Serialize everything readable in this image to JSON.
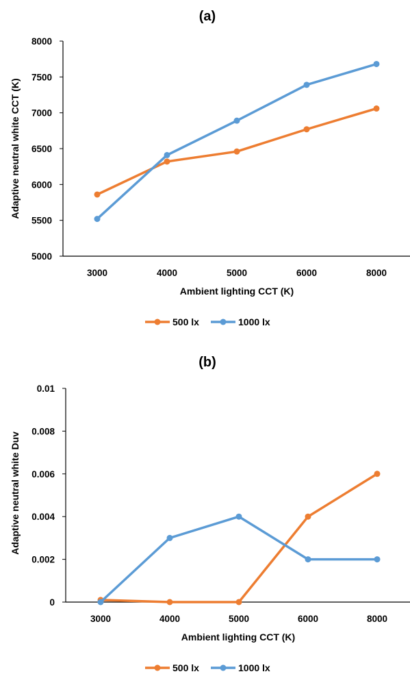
{
  "charts": [
    {
      "type": "line",
      "title": "(a)",
      "xlabel": "Ambient lighting CCT (K)",
      "ylabel": "Adaptive neutral white CCT (K)",
      "categories": [
        "3000",
        "4000",
        "5000",
        "6000",
        "8000"
      ],
      "ylim": [
        5000,
        8000
      ],
      "yticks": [
        "5000",
        "5500",
        "6000",
        "6500",
        "7000",
        "7500",
        "8000"
      ],
      "grid": false,
      "legend_position": "bottom",
      "series": [
        {
          "name": "500 lx",
          "color": "#ED7D31",
          "values": [
            5860,
            6320,
            6460,
            6770,
            7060
          ]
        },
        {
          "name": "1000 lx",
          "color": "#5B9BD5",
          "values": [
            5520,
            6410,
            6890,
            7390,
            7680
          ]
        }
      ]
    },
    {
      "type": "line",
      "title": "(b)",
      "xlabel": "Ambient lighting CCT (K)",
      "ylabel": "Adaptive neutral white Duv",
      "categories": [
        "3000",
        "4000",
        "5000",
        "6000",
        "8000"
      ],
      "ylim": [
        0,
        0.01
      ],
      "yticks": [
        "0",
        "0.002",
        "0.004",
        "0.006",
        "0.008",
        "0.01"
      ],
      "grid": false,
      "legend_position": "bottom",
      "series": [
        {
          "name": "500 lx",
          "color": "#ED7D31",
          "values": [
            0.0001,
            0,
            0,
            0.004,
            0.006
          ]
        },
        {
          "name": "1000 lx",
          "color": "#5B9BD5",
          "values": [
            0,
            0.003,
            0.004,
            0.002,
            0.002
          ]
        }
      ]
    }
  ],
  "chart_data": [
    {
      "type": "line",
      "title": "(a)",
      "xlabel": "Ambient lighting CCT (K)",
      "ylabel": "Adaptive neutral white CCT (K)",
      "categories": [
        "3000",
        "4000",
        "5000",
        "6000",
        "8000"
      ],
      "ylim": [
        5000,
        8000
      ],
      "series": [
        {
          "name": "500 lx",
          "values": [
            5860,
            6320,
            6460,
            6770,
            7060
          ]
        },
        {
          "name": "1000 lx",
          "values": [
            5520,
            6410,
            6890,
            7390,
            7680
          ]
        }
      ]
    },
    {
      "type": "line",
      "title": "(b)",
      "xlabel": "Ambient lighting CCT (K)",
      "ylabel": "Adaptive neutral white Duv",
      "categories": [
        "3000",
        "4000",
        "5000",
        "6000",
        "8000"
      ],
      "ylim": [
        0,
        0.01
      ],
      "series": [
        {
          "name": "500 lx",
          "values": [
            0.0001,
            0,
            0,
            0.004,
            0.006
          ]
        },
        {
          "name": "1000 lx",
          "values": [
            0,
            0.003,
            0.004,
            0.002,
            0.002
          ]
        }
      ]
    }
  ]
}
